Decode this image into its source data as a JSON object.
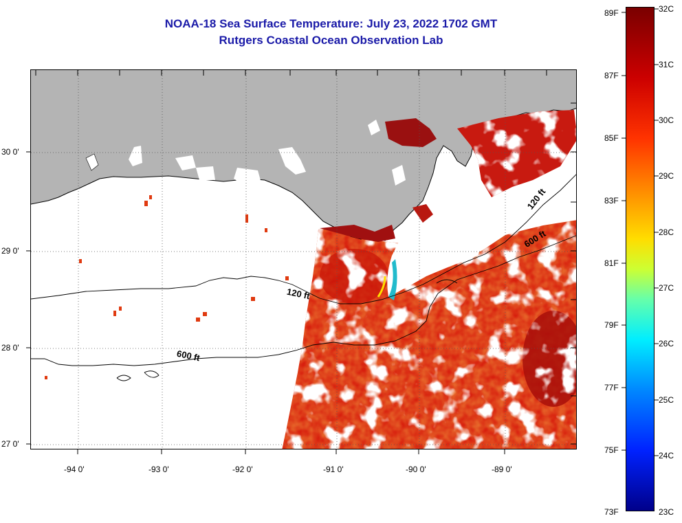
{
  "titles": {
    "line1": "NOAA-18 Sea Surface Temperature:  July 23, 2022 1702 GMT",
    "line2": "Rutgers Coastal Ocean Observation Lab"
  },
  "map": {
    "lat_labels": [
      "30 0'",
      "29 0'",
      "28 0'",
      "27 0'"
    ],
    "lon_labels": [
      "-94 0'",
      "-93 0'",
      "-92 0'",
      "-91 0'",
      "-90 0'",
      "-89 0'"
    ],
    "contour_labels": [
      "120 ft",
      "600 ft",
      "120 ft",
      "600 ft"
    ],
    "colors": {
      "land": "#b4b4b4",
      "no_data": "#ffffff",
      "warm_dark": "#8c0a0a",
      "warm": "#d81e10",
      "orange": "#ff6a00"
    }
  },
  "colorbar": {
    "f_labels": [
      "89F",
      "87F",
      "85F",
      "83F",
      "81F",
      "79F",
      "77F",
      "75F",
      "73F"
    ],
    "c_labels": [
      "32C",
      "31C",
      "30C",
      "29C",
      "28C",
      "27C",
      "26C",
      "25C",
      "24C",
      "23C"
    ],
    "colors": [
      "#7a0000",
      "#cc0000",
      "#ff3300",
      "#ff8800",
      "#ffdd00",
      "#ccff33",
      "#66ffaa",
      "#00eeff",
      "#0088ff",
      "#0022ff",
      "#00008a"
    ]
  }
}
